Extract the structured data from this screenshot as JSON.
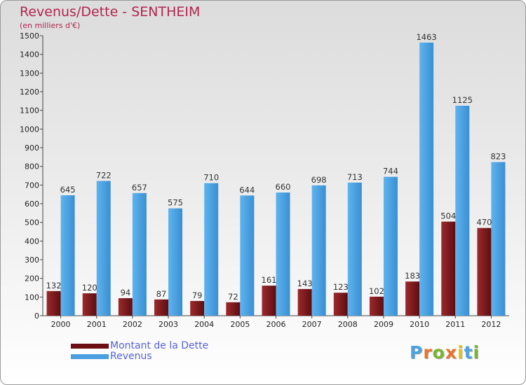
{
  "chart_data": {
    "type": "bar",
    "title": "Revenus/Dette - SENTHEIM",
    "subtitle": "(en milliers d'€)",
    "categories": [
      "2000",
      "2001",
      "2002",
      "2003",
      "2004",
      "2005",
      "2006",
      "2007",
      "2008",
      "2009",
      "2010",
      "2011",
      "2012"
    ],
    "series": [
      {
        "name": "Montant de la Dette",
        "color": "#7a1a1e",
        "values": [
          132,
          120,
          94,
          87,
          79,
          72,
          161,
          143,
          123,
          102,
          183,
          504,
          470
        ]
      },
      {
        "name": "Revenus",
        "color": "#4a9fe0",
        "values": [
          645,
          722,
          657,
          575,
          710,
          644,
          660,
          698,
          713,
          744,
          1463,
          1125,
          823
        ]
      }
    ],
    "ylim": [
      0,
      1500
    ],
    "yticks": [
      0,
      100,
      200,
      300,
      400,
      500,
      600,
      700,
      800,
      900,
      1000,
      1100,
      1200,
      1300,
      1400,
      1500
    ],
    "grid": false,
    "legend_position": "bottom-left"
  },
  "legend": [
    {
      "label": "Montant de la Dette",
      "color": "#6b0f12"
    },
    {
      "label": "Revenus",
      "color": "#4a9fe0"
    }
  ],
  "logo": {
    "letters": [
      "P",
      "r",
      "o",
      "x",
      "i",
      "t",
      "i"
    ],
    "colors": [
      "#4aa3df",
      "#e8752a",
      "#79b531",
      "#e8752a",
      "#e3c21f",
      "#4aa3df",
      "#79b531"
    ]
  }
}
